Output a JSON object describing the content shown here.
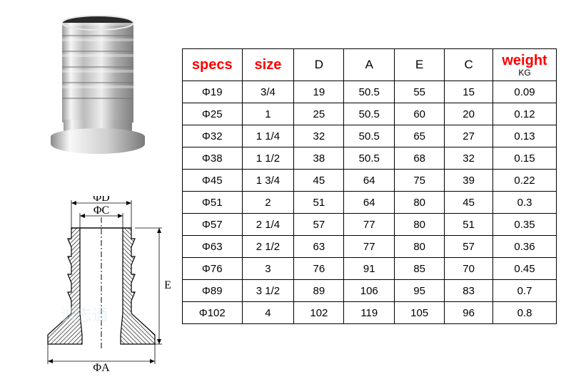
{
  "headers": {
    "specs": "specs",
    "size": "size",
    "d": "D",
    "a": "A",
    "e": "E",
    "c": "C",
    "weight": "weight",
    "weight_unit": "KG"
  },
  "rows": [
    {
      "specs": "Φ19",
      "size": "3/4",
      "d": "19",
      "a": "50.5",
      "e": "55",
      "c": "15",
      "w": "0.09"
    },
    {
      "specs": "Φ25",
      "size": "1",
      "d": "25",
      "a": "50.5",
      "e": "60",
      "c": "20",
      "w": "0.12"
    },
    {
      "specs": "Φ32",
      "size": "1 1/4",
      "d": "32",
      "a": "50.5",
      "e": "65",
      "c": "27",
      "w": "0.13"
    },
    {
      "specs": "Φ38",
      "size": "1 1/2",
      "d": "38",
      "a": "50.5",
      "e": "68",
      "c": "32",
      "w": "0.15"
    },
    {
      "specs": "Φ45",
      "size": "1 3/4",
      "d": "45",
      "a": "64",
      "e": "75",
      "c": "39",
      "w": "0.22"
    },
    {
      "specs": "Φ51",
      "size": "2",
      "d": "51",
      "a": "64",
      "e": "80",
      "c": "45",
      "w": "0.3"
    },
    {
      "specs": "Φ57",
      "size": "2 1/4",
      "d": "57",
      "a": "77",
      "e": "80",
      "c": "51",
      "w": "0.35"
    },
    {
      "specs": "Φ63",
      "size": "2 1/2",
      "d": "63",
      "a": "77",
      "e": "80",
      "c": "57",
      "w": "0.36"
    },
    {
      "specs": "Φ76",
      "size": "3",
      "d": "76",
      "a": "91",
      "e": "85",
      "c": "70",
      "w": "0.45"
    },
    {
      "specs": "Φ89",
      "size": "3 1/2",
      "d": "89",
      "a": "106",
      "e": "95",
      "c": "83",
      "w": "0.7"
    },
    {
      "specs": "Φ102",
      "size": "4",
      "d": "102",
      "a": "119",
      "e": "105",
      "c": "96",
      "w": "0.8"
    }
  ],
  "diagram": {
    "label_d": "ΦD",
    "label_c": "ΦC",
    "label_e": "E",
    "label_a": "ΦA"
  },
  "colors": {
    "header_red": "#ff0000",
    "border": "#000000",
    "metal_light": "#f2f2f2",
    "metal_mid": "#c8c8c8",
    "metal_dark": "#888888",
    "hatch": "#606060",
    "diagram_line": "#000000"
  }
}
